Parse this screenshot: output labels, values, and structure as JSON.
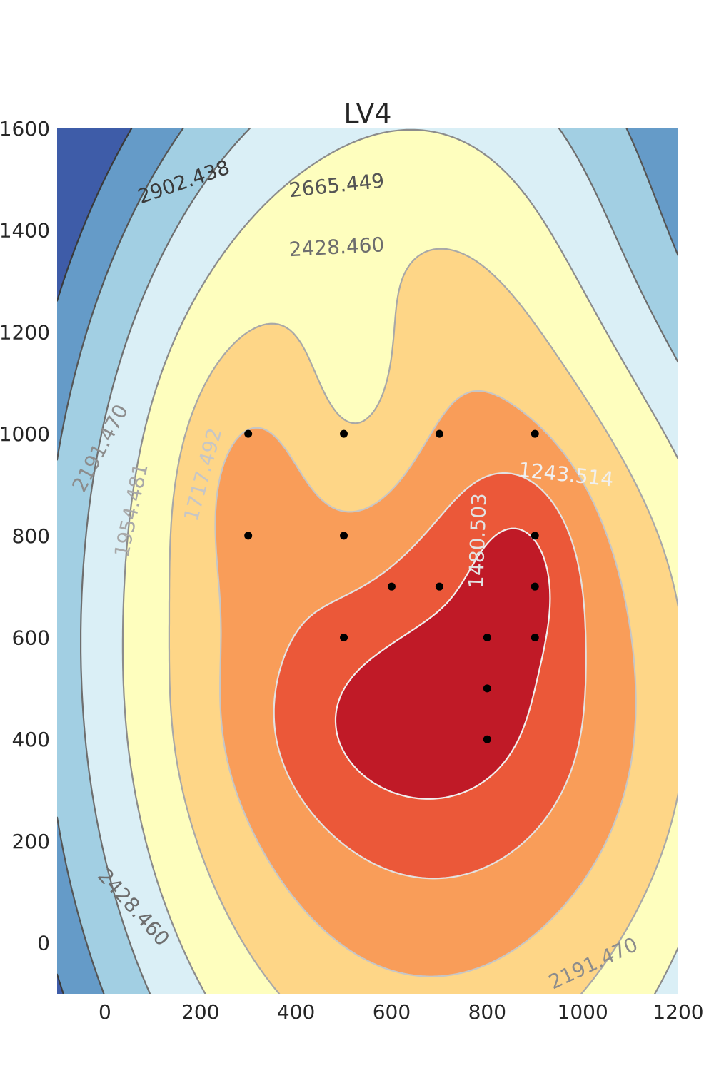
{
  "chart_data": {
    "type": "contour",
    "title": "LV4",
    "xlabel": "",
    "ylabel": "",
    "xlim": [
      -100,
      1200
    ],
    "ylim": [
      -100,
      1600
    ],
    "x_ticks": [
      0,
      200,
      400,
      600,
      800,
      1000,
      1200
    ],
    "y_ticks": [
      0,
      200,
      400,
      600,
      800,
      1000,
      1200,
      1400,
      1600
    ],
    "grid": false,
    "levels": [
      1243.514,
      1480.503,
      1717.492,
      1954.481,
      2191.47,
      2428.46,
      2665.449,
      2902.438
    ],
    "band_colors": [
      "#c01a27",
      "#eb5839",
      "#f99d59",
      "#fed687",
      "#fefebe",
      "#daeff6",
      "#a2cfe3",
      "#659bc8",
      "#3e5ca8",
      "#313695"
    ],
    "contour_labels": [
      {
        "text": "2902.438",
        "level": 2902.438,
        "x": 165,
        "y": 1495,
        "angle": -19
      },
      {
        "text": "2665.449",
        "level": 2665.449,
        "x": 485,
        "y": 1488,
        "angle": -6
      },
      {
        "text": "2428.460",
        "level": 2428.46,
        "x": 485,
        "y": 1367,
        "angle": -3
      },
      {
        "text": "2428.460",
        "level": 2428.46,
        "x": 60,
        "y": 70,
        "angle": 48
      },
      {
        "text": "2191.470",
        "level": 2191.47,
        "x": -10,
        "y": 972,
        "angle": -62
      },
      {
        "text": "2191.470",
        "level": 2191.47,
        "x": 1022,
        "y": -40,
        "angle": -25
      },
      {
        "text": "1954.481",
        "level": 1954.481,
        "x": 55,
        "y": 850,
        "angle": -78
      },
      {
        "text": "1717.492",
        "level": 1717.492,
        "x": 205,
        "y": 920,
        "angle": -75
      },
      {
        "text": "1480.503",
        "level": 1480.503,
        "x": 780,
        "y": 790,
        "angle": -88
      },
      {
        "text": "1243.514",
        "level": 1243.514,
        "x": 965,
        "y": 920,
        "angle": 6
      }
    ],
    "points": [
      {
        "x": 300,
        "y": 1000
      },
      {
        "x": 500,
        "y": 1000
      },
      {
        "x": 700,
        "y": 1000
      },
      {
        "x": 900,
        "y": 1000
      },
      {
        "x": 300,
        "y": 800
      },
      {
        "x": 500,
        "y": 800
      },
      {
        "x": 900,
        "y": 800
      },
      {
        "x": 600,
        "y": 700
      },
      {
        "x": 700,
        "y": 700
      },
      {
        "x": 900,
        "y": 700
      },
      {
        "x": 500,
        "y": 600
      },
      {
        "x": 800,
        "y": 600
      },
      {
        "x": 900,
        "y": 600
      },
      {
        "x": 800,
        "y": 500
      },
      {
        "x": 800,
        "y": 400
      }
    ]
  }
}
